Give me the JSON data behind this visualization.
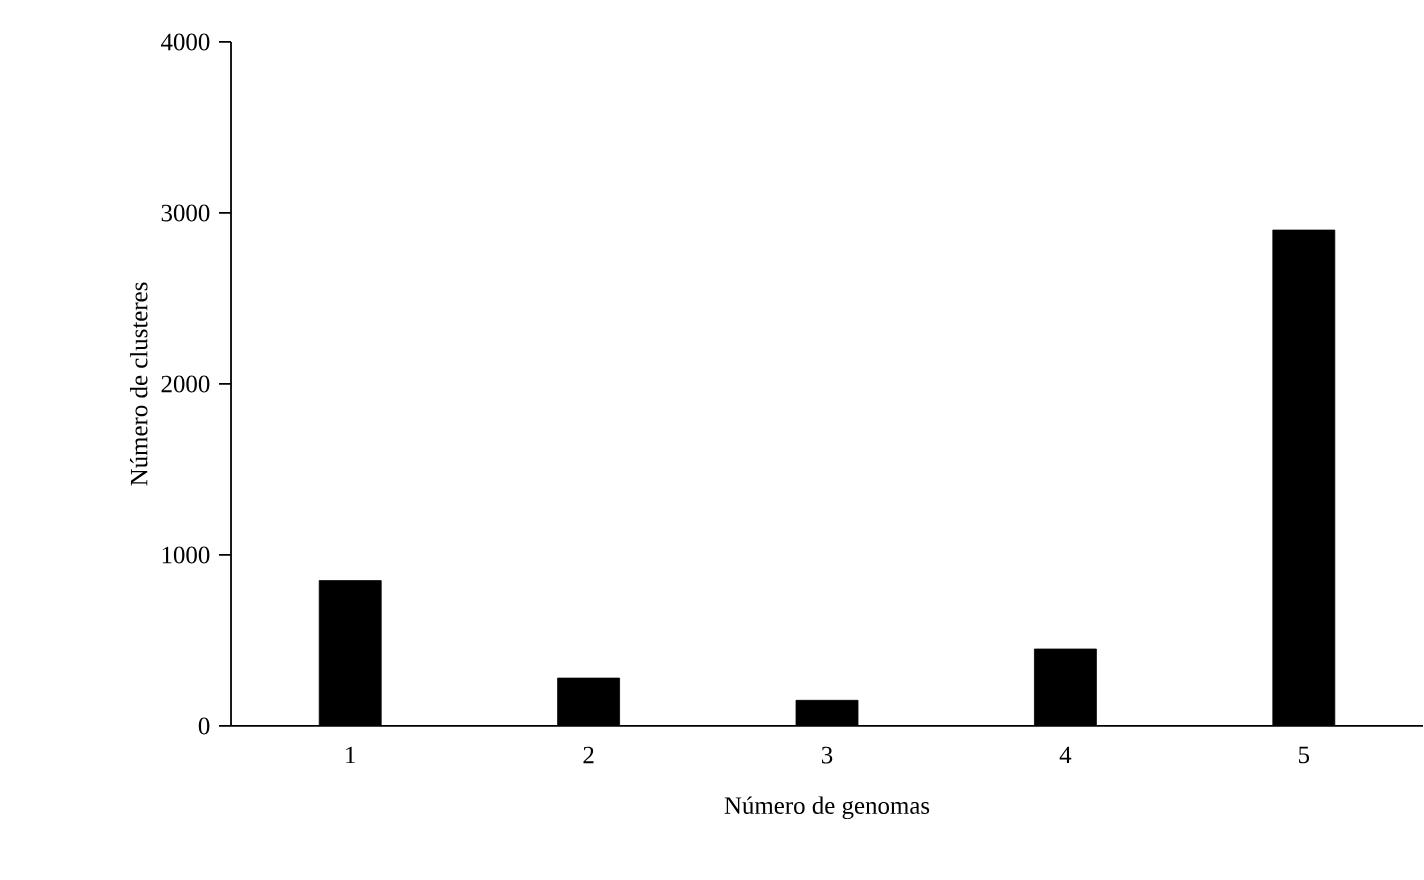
{
  "chart_data": {
    "type": "bar",
    "xlabel": "Número de genomas",
    "ylabel": "Número de clusteres",
    "categories": [
      "1",
      "2",
      "3",
      "4",
      "5"
    ],
    "values": [
      850,
      280,
      150,
      450,
      2900
    ],
    "color": "#000000",
    "ylim": [
      0,
      4000
    ],
    "yticks": [
      0,
      1000,
      2000,
      3000,
      4000
    ]
  }
}
